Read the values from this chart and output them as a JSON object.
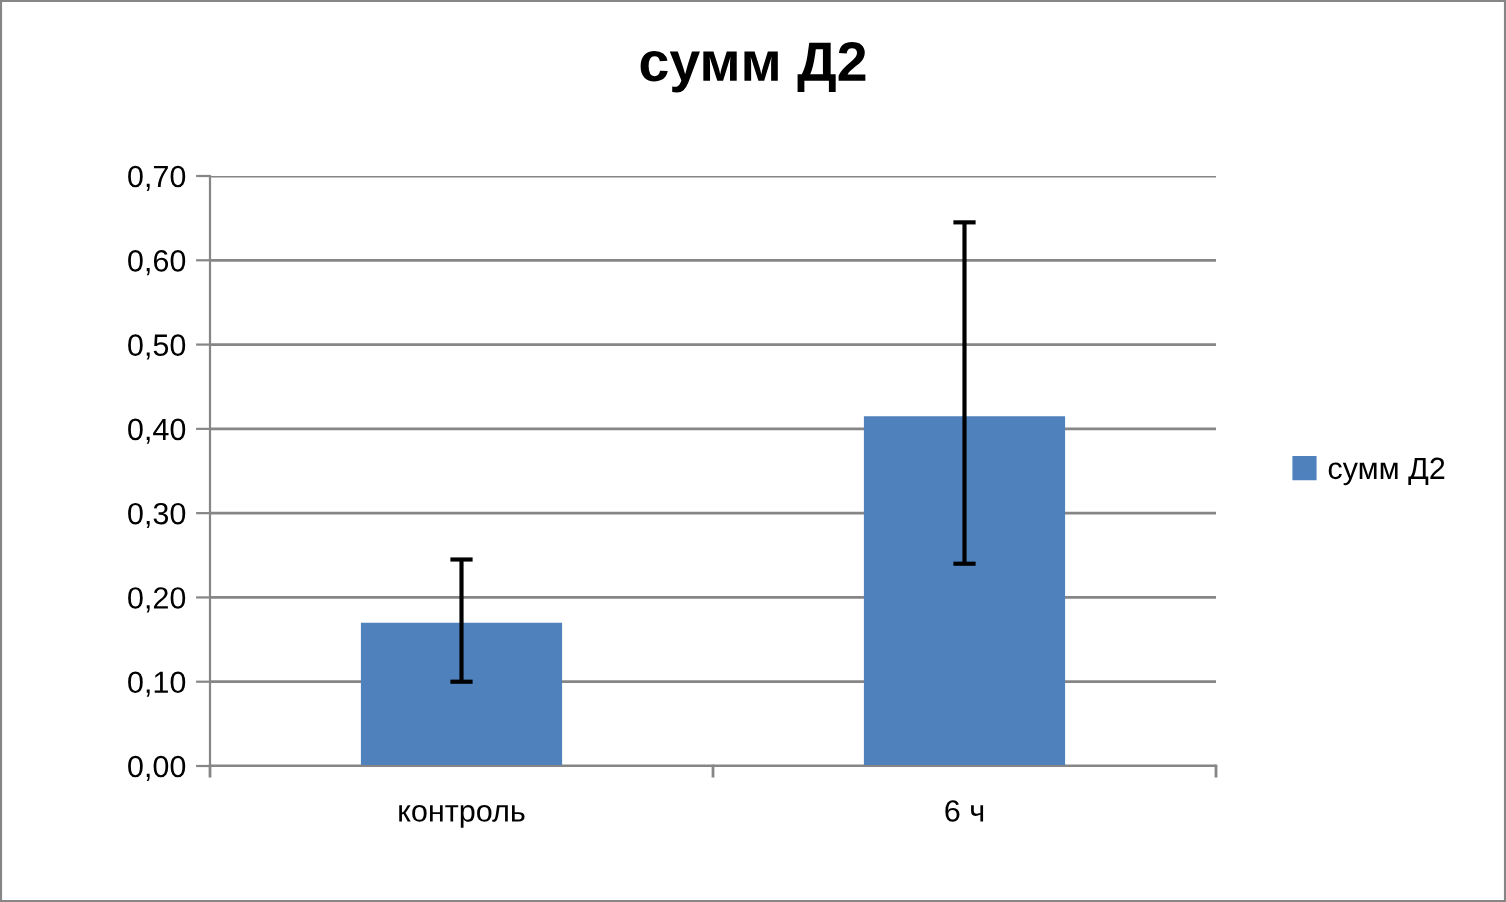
{
  "chart_data": {
    "type": "bar",
    "title": "сумм Д2",
    "categories": [
      "контроль",
      "6 ч"
    ],
    "series": [
      {
        "name": "сумм Д2",
        "color": "#4f81bd",
        "values": [
          0.17,
          0.415
        ],
        "errors": [
          [
            0.1,
            0.245
          ],
          [
            0.24,
            0.645
          ]
        ]
      }
    ],
    "ylim": [
      0,
      0.7
    ],
    "yticks": [
      {
        "value": 0,
        "label": "0,00"
      },
      {
        "value": 0.1,
        "label": "0,10"
      },
      {
        "value": 0.2,
        "label": "0,20"
      },
      {
        "value": 0.3,
        "label": "0,30"
      },
      {
        "value": 0.4,
        "label": "0,40"
      },
      {
        "value": 0.5,
        "label": "0,50"
      },
      {
        "value": 0.6,
        "label": "0,60"
      },
      {
        "value": 0.7,
        "label": "0,70"
      }
    ],
    "grid": "y",
    "legend": "right"
  }
}
